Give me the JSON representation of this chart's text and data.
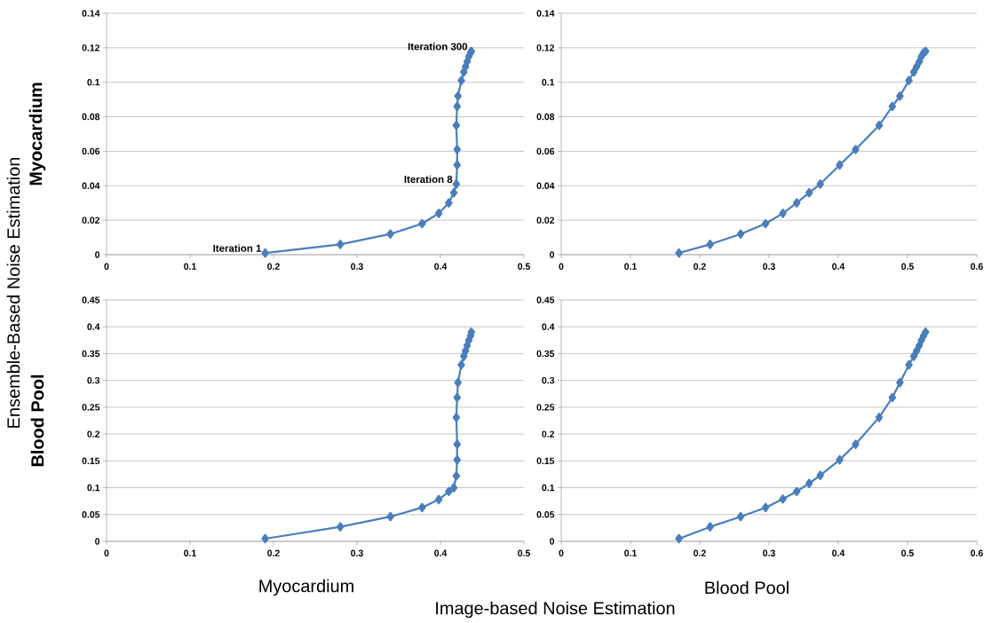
{
  "chart_data": [
    {
      "type": "line",
      "ylabel": "Myocardium",
      "xlim": [
        0,
        0.5
      ],
      "xticks": [
        0,
        0.1,
        0.2,
        0.3,
        0.4,
        0.5
      ],
      "ylim": [
        0,
        0.14
      ],
      "yticks": [
        0,
        0.02,
        0.04,
        0.06,
        0.08,
        0.1,
        0.12,
        0.14
      ],
      "grid": "y",
      "marker": "diamond",
      "line_style": "solid",
      "x": [
        0.19,
        0.28,
        0.34,
        0.378,
        0.398,
        0.41,
        0.416,
        0.419,
        0.42,
        0.42,
        0.419,
        0.42,
        0.421,
        0.425,
        0.428,
        0.43,
        0.432,
        0.434,
        0.436,
        0.437
      ],
      "series": [
        {
          "color": "#4a7ebb",
          "values": [
            0.001,
            0.006,
            0.012,
            0.018,
            0.024,
            0.03,
            0.036,
            0.041,
            0.052,
            0.061,
            0.075,
            0.086,
            0.092,
            0.101,
            0.106,
            0.109,
            0.112,
            0.115,
            0.117,
            0.118
          ]
        }
      ],
      "annotations": [
        {
          "text": "Iteration 1",
          "x": 0.19,
          "y": 0.001
        },
        {
          "text": "Iteration 8",
          "x": 0.419,
          "y": 0.041
        },
        {
          "text": "Iteration 300",
          "x": 0.437,
          "y": 0.118
        }
      ]
    },
    {
      "type": "line",
      "xlim": [
        0,
        0.6
      ],
      "xticks": [
        0,
        0.1,
        0.2,
        0.3,
        0.4,
        0.5,
        0.6
      ],
      "ylim": [
        0,
        0.14
      ],
      "yticks": [
        0,
        0.02,
        0.04,
        0.06,
        0.08,
        0.1,
        0.12,
        0.14
      ],
      "grid": "y",
      "marker": "diamond",
      "line_style": "solid",
      "x": [
        0.17,
        0.215,
        0.259,
        0.295,
        0.32,
        0.34,
        0.358,
        0.374,
        0.402,
        0.425,
        0.459,
        0.478,
        0.489,
        0.502,
        0.509,
        0.513,
        0.517,
        0.52,
        0.523,
        0.526
      ],
      "series": [
        {
          "color": "#4a7ebb",
          "values": [
            0.001,
            0.006,
            0.012,
            0.018,
            0.024,
            0.03,
            0.036,
            0.041,
            0.052,
            0.061,
            0.075,
            0.086,
            0.092,
            0.101,
            0.106,
            0.109,
            0.112,
            0.115,
            0.117,
            0.118
          ]
        }
      ]
    },
    {
      "type": "line",
      "xlabel": "Myocardium",
      "ylabel": "Blood Pool",
      "xlim": [
        0,
        0.5
      ],
      "xticks": [
        0,
        0.1,
        0.2,
        0.3,
        0.4,
        0.5
      ],
      "ylim": [
        0,
        0.45
      ],
      "yticks": [
        0,
        0.05,
        0.1,
        0.15,
        0.2,
        0.25,
        0.3,
        0.35,
        0.4,
        0.45
      ],
      "grid": "y",
      "marker": "diamond",
      "line_style": "solid",
      "x": [
        0.19,
        0.28,
        0.34,
        0.378,
        0.398,
        0.41,
        0.416,
        0.419,
        0.42,
        0.42,
        0.419,
        0.42,
        0.421,
        0.425,
        0.428,
        0.43,
        0.432,
        0.434,
        0.436,
        0.437
      ],
      "series": [
        {
          "color": "#4a7ebb",
          "values": [
            0.005,
            0.027,
            0.046,
            0.063,
            0.078,
            0.093,
            0.1,
            0.122,
            0.152,
            0.181,
            0.231,
            0.268,
            0.296,
            0.329,
            0.345,
            0.355,
            0.365,
            0.375,
            0.383,
            0.39
          ]
        }
      ],
      "annotations": [
        "Ensemble-Based Noise Estimation",
        "Image-based Noise Estimation"
      ]
    },
    {
      "type": "line",
      "xlabel": "Blood Pool",
      "xlim": [
        0,
        0.6
      ],
      "xticks": [
        0,
        0.1,
        0.2,
        0.3,
        0.4,
        0.5,
        0.6
      ],
      "ylim": [
        0,
        0.45
      ],
      "yticks": [
        0,
        0.05,
        0.1,
        0.15,
        0.2,
        0.25,
        0.3,
        0.35,
        0.4,
        0.45
      ],
      "grid": "y",
      "marker": "diamond",
      "line_style": "solid",
      "x": [
        0.17,
        0.215,
        0.259,
        0.295,
        0.32,
        0.34,
        0.358,
        0.374,
        0.402,
        0.425,
        0.459,
        0.478,
        0.489,
        0.502,
        0.509,
        0.513,
        0.517,
        0.52,
        0.523,
        0.526
      ],
      "series": [
        {
          "color": "#4a7ebb",
          "values": [
            0.005,
            0.027,
            0.046,
            0.063,
            0.079,
            0.093,
            0.108,
            0.123,
            0.152,
            0.181,
            0.231,
            0.268,
            0.296,
            0.329,
            0.345,
            0.355,
            0.365,
            0.375,
            0.383,
            0.39
          ]
        }
      ]
    }
  ]
}
